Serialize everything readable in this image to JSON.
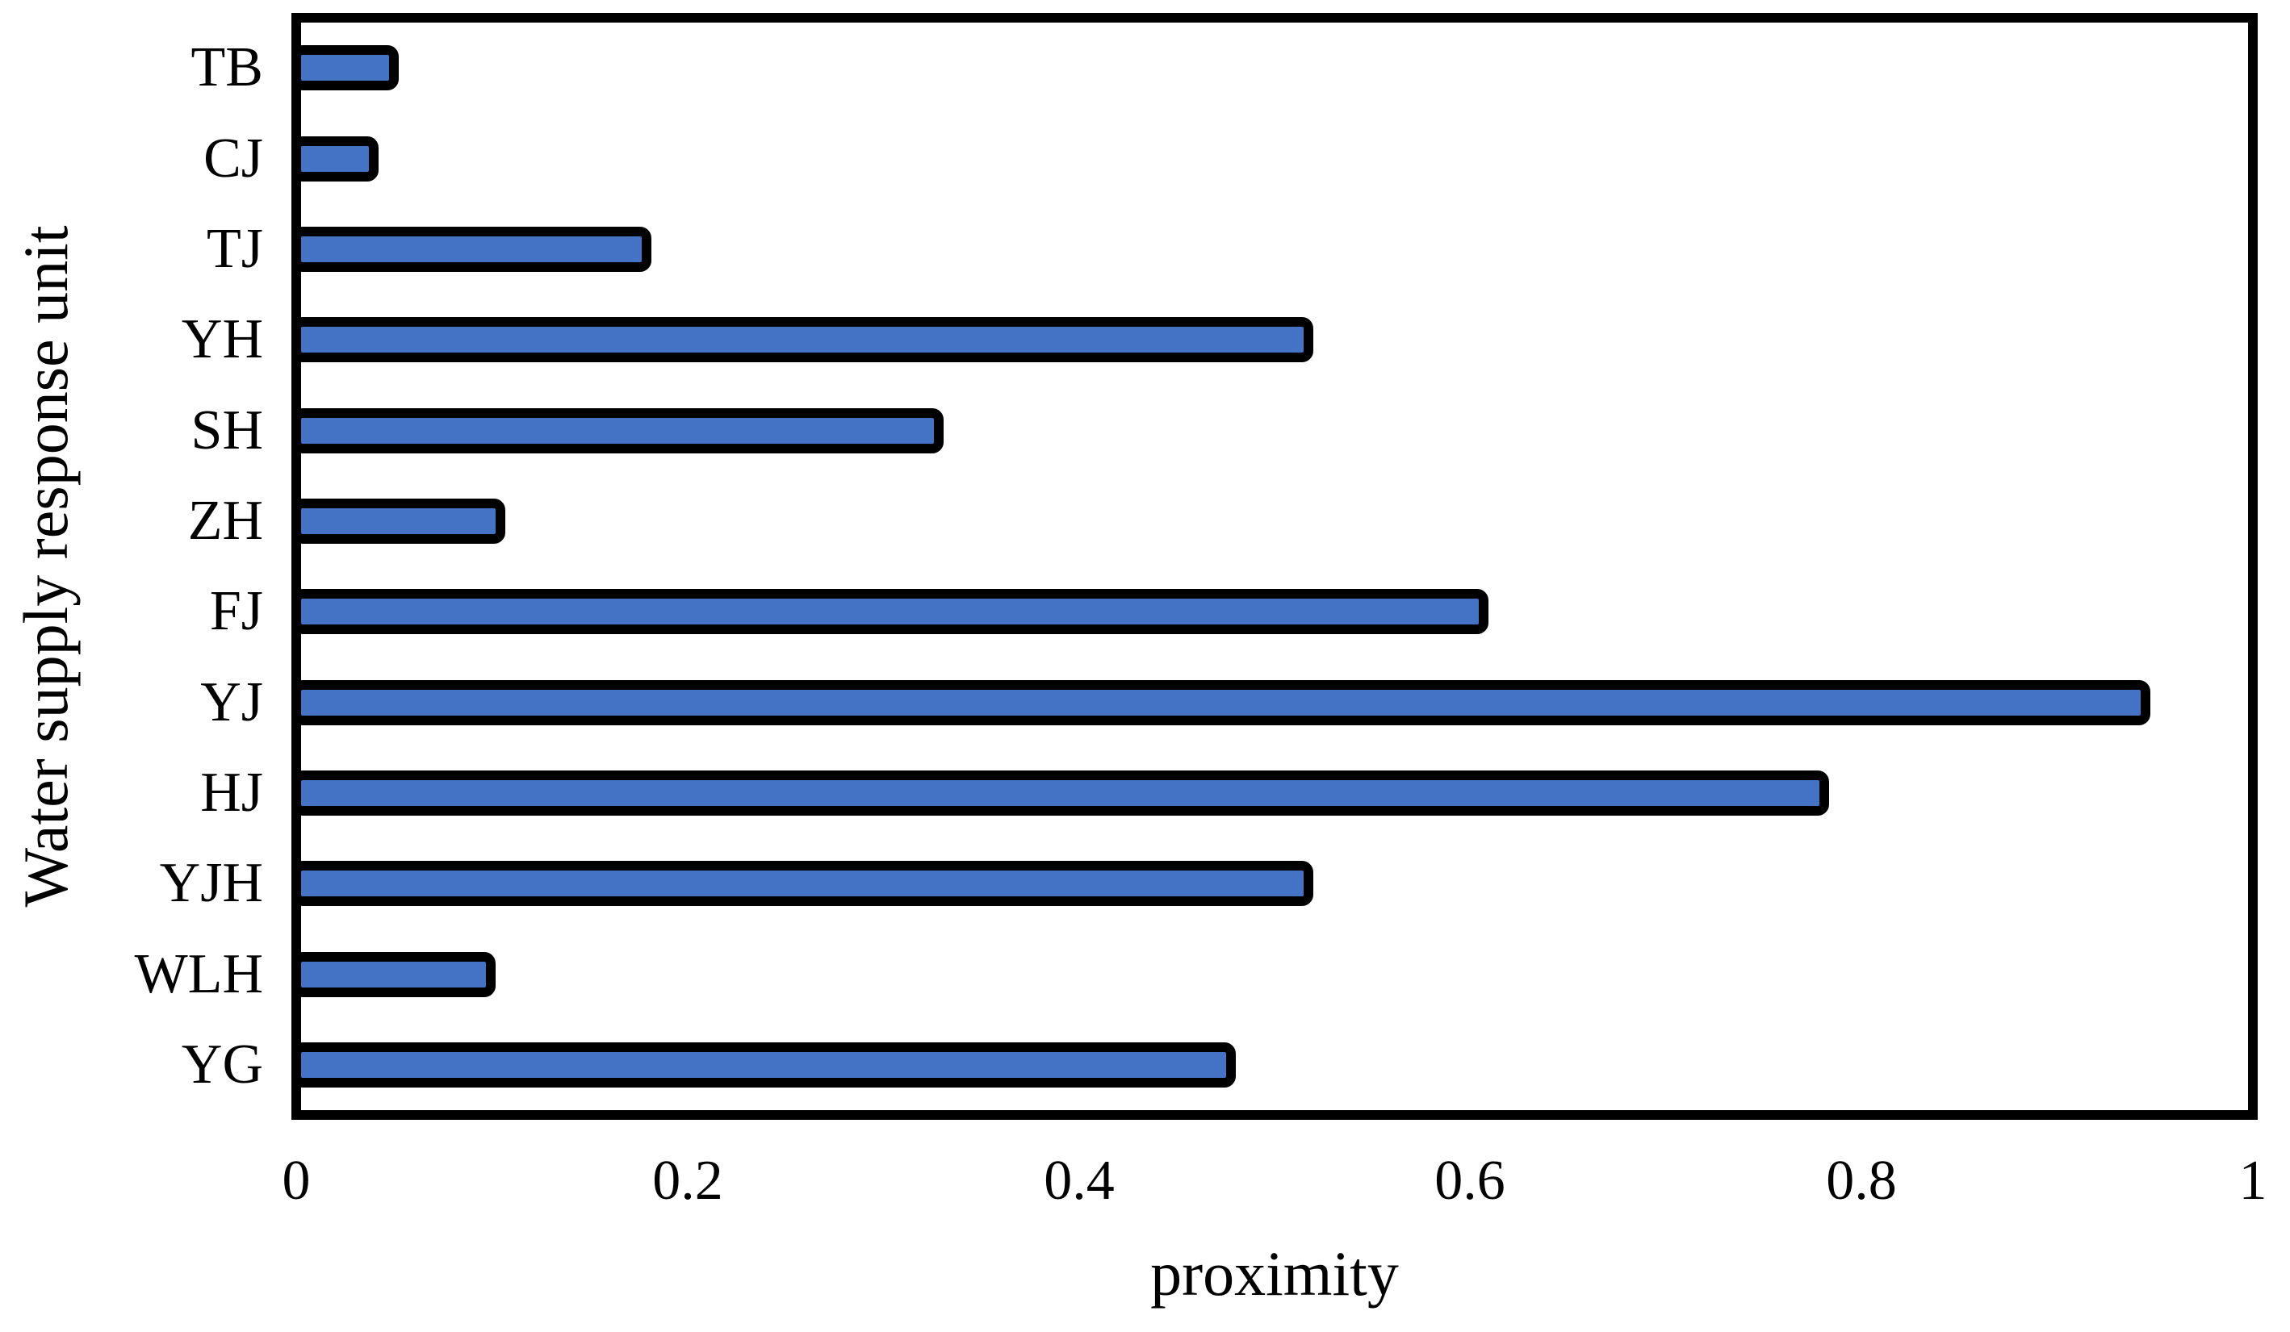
{
  "figure": {
    "background_color": "#ffffff",
    "axis_color": "#000000",
    "bar_fill_color": "#4472C4",
    "bar_edge_color": "#000000"
  },
  "chart_data": {
    "type": "bar",
    "orientation": "horizontal",
    "title": "",
    "xlabel": "proximity",
    "ylabel": "Water supply response unit",
    "categories": [
      "TB",
      "CJ",
      "TJ",
      "YH",
      "SH",
      "ZH",
      "FJ",
      "YJ",
      "HJ",
      "YJH",
      "WLH",
      "YG"
    ],
    "values": [
      0.05,
      0.04,
      0.18,
      0.52,
      0.33,
      0.105,
      0.61,
      0.95,
      0.785,
      0.52,
      0.1,
      0.48
    ],
    "xlim": [
      0,
      1
    ],
    "xticks": [
      0,
      0.2,
      0.4,
      0.6,
      0.8,
      1
    ],
    "xtick_labels": [
      "0",
      "0.2",
      "0.4",
      "0.6",
      "0.8",
      "1"
    ],
    "grid": false,
    "legend": null,
    "bar_color": "#4472C4",
    "bar_edge_color": "#000000"
  }
}
